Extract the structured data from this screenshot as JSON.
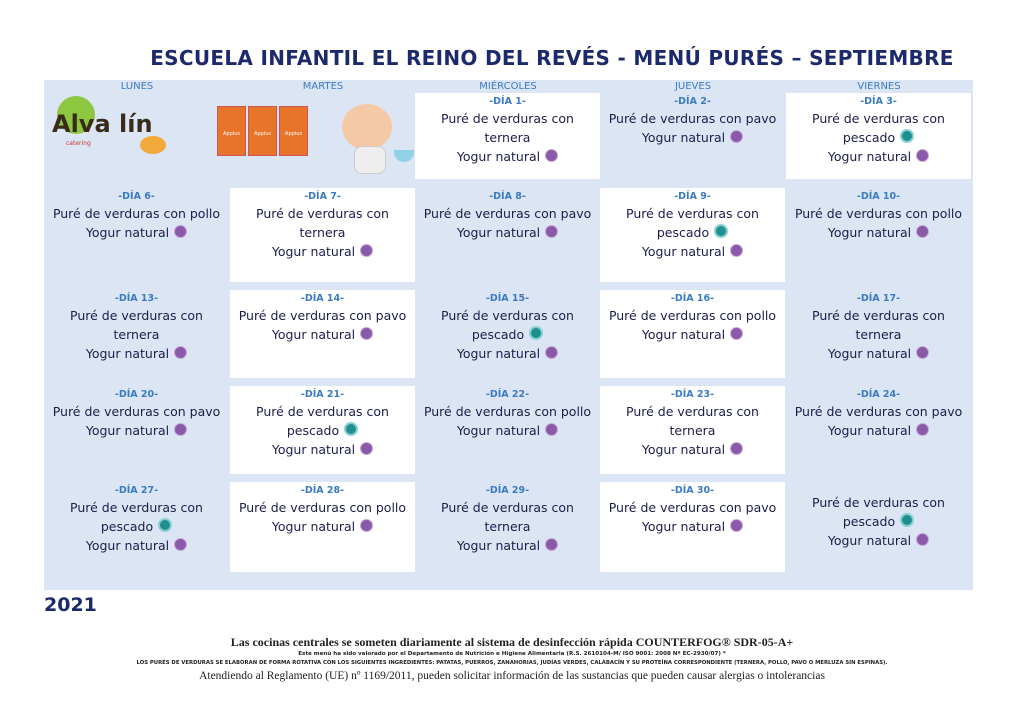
{
  "header": {
    "title": "ESCUELA INFANTIL EL REINO DEL REVÉS - MENÚ PURÉS – SEPTIEMBRE"
  },
  "weekdays": [
    "LUNES",
    "MARTES",
    "MIÉRCOLES",
    "JUEVES",
    "VIERNES"
  ],
  "logos": {
    "alvalin": "Alva lín",
    "catering": "catering",
    "applus": "Applus"
  },
  "weeks": [
    [
      {
        "day": "-DÍA 1-",
        "lines": [
          "Puré de verduras con",
          "ternera",
          "Yogur natural"
        ]
      },
      {
        "day": "-DÍA 2-",
        "lines": [
          "Puré de verduras con pavo",
          "Yogur natural"
        ]
      },
      {
        "day": "-DÍA 3-",
        "lines": [
          "Puré de verduras con",
          "pescado",
          "Yogur natural"
        ]
      }
    ],
    [
      {
        "day": "-DÍA 6-",
        "lines": [
          "Puré de verduras con pollo",
          "Yogur natural"
        ]
      },
      {
        "day": "-DÍA 7-",
        "lines": [
          "Puré de verduras con",
          "ternera",
          "Yogur natural"
        ]
      },
      {
        "day": "-DÍA 8-",
        "lines": [
          "Puré de verduras con pavo",
          "Yogur natural"
        ]
      },
      {
        "day": "-DÍA 9-",
        "lines": [
          "Puré de verduras con",
          "pescado",
          "Yogur natural"
        ]
      },
      {
        "day": "-DÍA 10-",
        "lines": [
          "Puré de verduras con pollo",
          "Yogur natural"
        ]
      }
    ],
    [
      {
        "day": "-DÍA 13-",
        "lines": [
          "Puré de verduras con",
          "ternera",
          "Yogur natural"
        ]
      },
      {
        "day": "-DÍA 14-",
        "lines": [
          "Puré de verduras con pavo",
          "Yogur natural"
        ]
      },
      {
        "day": "-DÍA 15-",
        "lines": [
          "Puré de verduras con",
          "pescado",
          "Yogur natural"
        ]
      },
      {
        "day": "-DÍA 16-",
        "lines": [
          "Puré de verduras con pollo",
          "Yogur natural"
        ]
      },
      {
        "day": "-DÍA 17-",
        "lines": [
          "Puré de verduras con",
          "ternera",
          "Yogur natural"
        ]
      }
    ],
    [
      {
        "day": "-DÍA 20-",
        "lines": [
          "Puré de verduras con pavo",
          "Yogur natural"
        ]
      },
      {
        "day": "-DÍA 21-",
        "lines": [
          "Puré de verduras con",
          "pescado",
          "Yogur natural"
        ]
      },
      {
        "day": "-DÍA 22-",
        "lines": [
          "Puré de verduras con pollo",
          "Yogur natural"
        ]
      },
      {
        "day": "-DÍA 23-",
        "lines": [
          "Puré de verduras con",
          "ternera",
          "Yogur natural"
        ]
      },
      {
        "day": "-DÍA 24-",
        "lines": [
          "Puré de verduras con pavo",
          "Yogur natural"
        ]
      }
    ],
    [
      {
        "day": "-DÍA 27-",
        "lines": [
          "Puré de verduras con",
          "pescado",
          "Yogur natural"
        ]
      },
      {
        "day": "-DÍA 28-",
        "lines": [
          "Puré de verduras con pollo",
          "Yogur natural"
        ]
      },
      {
        "day": "-DÍA 29-",
        "lines": [
          "Puré de verduras con",
          "ternera",
          "Yogur natural"
        ]
      },
      {
        "day": "-DÍA 30-",
        "lines": [
          "Puré de verduras con pavo",
          "Yogur natural"
        ]
      },
      {
        "lines": [
          "Puré de verduras con",
          "pescado",
          "Yogur natural"
        ]
      }
    ]
  ],
  "footer": {
    "year": "2021",
    "line1": "Las cocinas centrales se someten diariamente al sistema de desinfección rápida COUNTERFOG® SDR-05-A+",
    "line2": "Este menú ha sido valorado por el Departamento de Nutrición e Higiene Alimentaria (R.S. 2610104-M/ ISO 9001: 2008 Nº EC-2930/07) *",
    "line3": "LOS PURÉS DE VERDURAS SE ELABORAN DE FORMA ROTATIVA CON LOS SIGUIENTES INGREDIENTES: PATATAS, PUERROS, ZANAHORIAS, JUDÍAS VERDES, CALABACÍN Y SU PROTEÍNA CORRESPONDIENTE (TERNERA, POLLO, PAVO O MERLUZA SIN ESPINAS).",
    "line4": "Atendiendo al Reglamento (UE) nº 1169/2011, pueden solicitar información de las sustancias que pueden causar alergias o intolerancias"
  }
}
